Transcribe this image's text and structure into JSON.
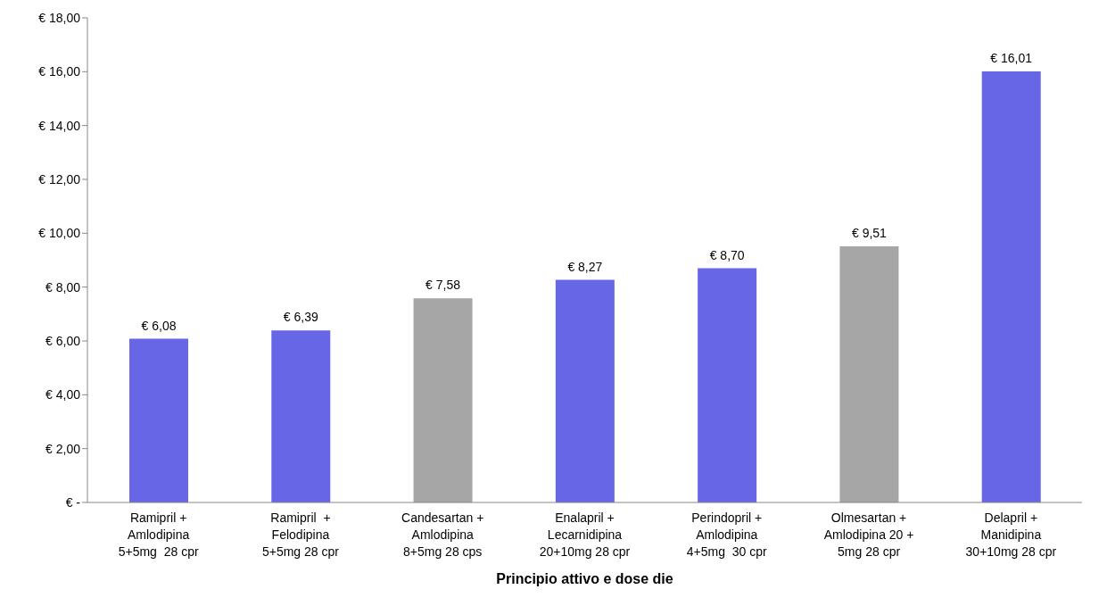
{
  "chart_data": {
    "type": "bar",
    "xlabel": "Principio attivo e dose die",
    "categories": [
      "Ramipril +\nAmlodipina\n5+5mg  28 cpr",
      "Ramipril  +\nFelodipina\n5+5mg 28 cpr",
      "Candesartan +\nAmlodipina\n8+5mg 28 cps",
      "Enalapril +\nLecarnidipina\n20+10mg 28 cpr",
      "Perindopril +\nAmlodipina\n4+5mg  30 cpr",
      "Olmesartan +\nAmlodipina 20 +\n5mg 28 cpr",
      "Delapril +\nManidipina\n30+10mg 28 cpr"
    ],
    "values": [
      6.08,
      6.39,
      7.58,
      8.27,
      8.7,
      9.51,
      16.01
    ],
    "colors": [
      "#6666e6",
      "#6666e6",
      "#a6a6a6",
      "#6666e6",
      "#6666e6",
      "#a6a6a6",
      "#6666e6"
    ],
    "value_labels": [
      "€ 6,08",
      "€ 6,39",
      "€ 7,58",
      "€ 8,27",
      "€ 8,70",
      "€ 9,51",
      "€ 16,01"
    ],
    "ylim": [
      0,
      18
    ],
    "yticks": [
      {
        "value": 0,
        "label": "€ -"
      },
      {
        "value": 2,
        "label": "€ 2,00"
      },
      {
        "value": 4,
        "label": "€ 4,00"
      },
      {
        "value": 6,
        "label": "€ 6,00"
      },
      {
        "value": 8,
        "label": "€ 8,00"
      },
      {
        "value": 10,
        "label": "€ 10,00"
      },
      {
        "value": 12,
        "label": "€ 12,00"
      },
      {
        "value": 14,
        "label": "€ 14,00"
      },
      {
        "value": 16,
        "label": "€ 16,00"
      },
      {
        "value": 18,
        "label": "€ 18,00"
      }
    ],
    "grid": false,
    "legend": false
  }
}
